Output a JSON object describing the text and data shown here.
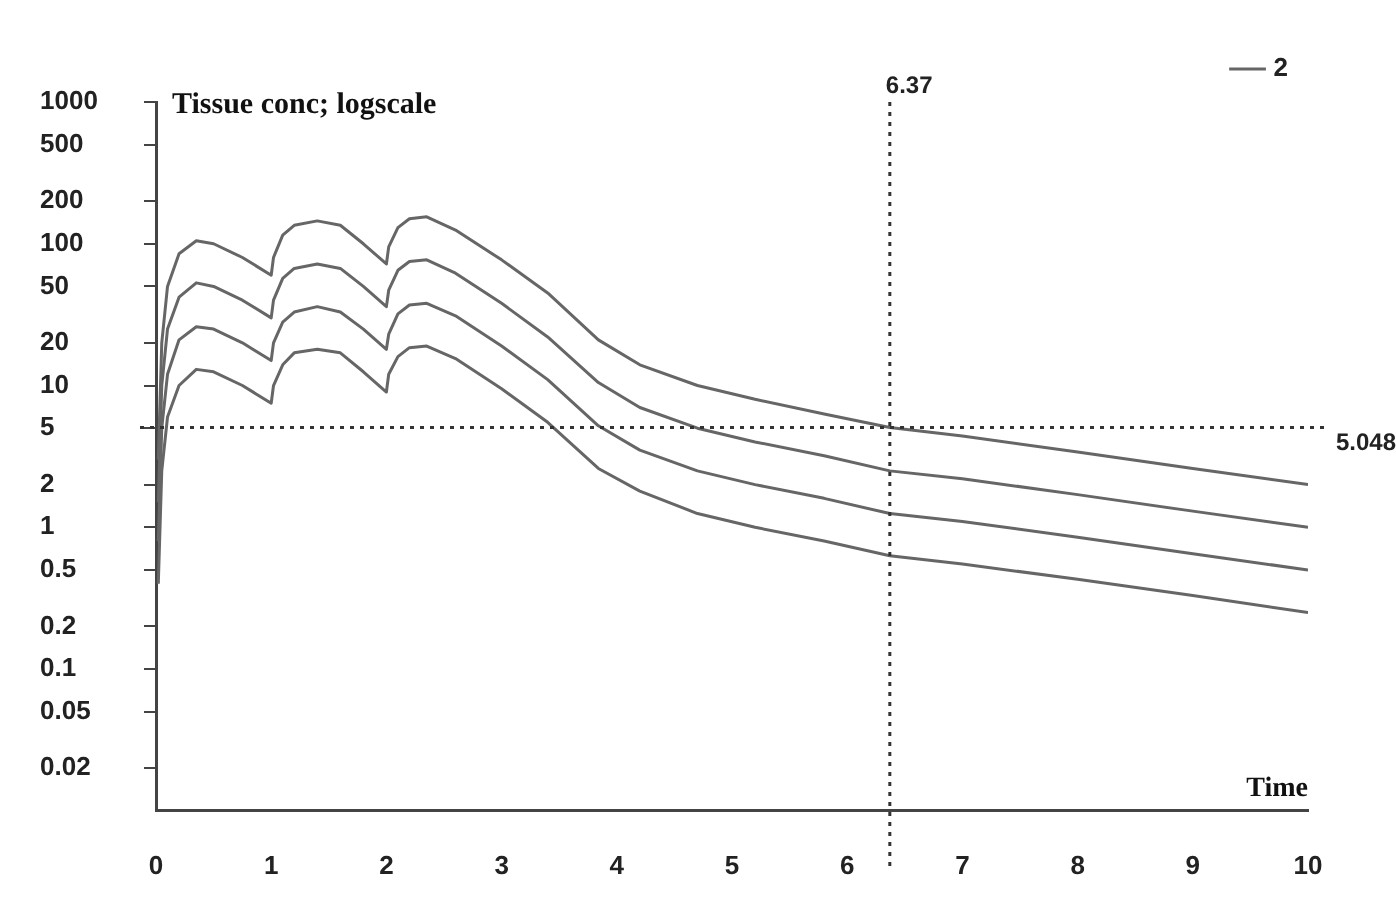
{
  "chart_data": {
    "type": "line",
    "title": "Tissue conc; logscale",
    "xlabel": "Time",
    "log": "y",
    "grid": false,
    "legend": "top right",
    "marker": "none",
    "line_style": "solid",
    "xlim": [
      0,
      10
    ],
    "xticks": [
      0,
      1,
      2,
      3,
      4,
      5,
      6,
      7,
      8,
      9,
      10
    ],
    "ylim": [
      0.01,
      1000
    ],
    "yticks": [
      1000,
      500,
      200,
      100,
      50,
      20,
      10,
      5,
      2,
      1,
      0.5,
      0.2,
      0.1,
      0.05,
      0.02
    ],
    "x": [
      0.02,
      0.05,
      0.1,
      0.2,
      0.35,
      0.5,
      0.75,
      1.0,
      1.02,
      1.1,
      1.2,
      1.4,
      1.6,
      1.8,
      2.0,
      2.02,
      2.1,
      2.2,
      2.35,
      2.6,
      3.0,
      3.4,
      3.84,
      4.2,
      4.7,
      5.2,
      5.8,
      6.37,
      7,
      8,
      9,
      10
    ],
    "series": [
      {
        "name": "2",
        "color": "#666666",
        "values": [
          3,
          20,
          50,
          85,
          105,
          100,
          80,
          60,
          80,
          115,
          135,
          145,
          135,
          100,
          72,
          95,
          130,
          150,
          155,
          125,
          77,
          45,
          21,
          14,
          10,
          8,
          6.3,
          5.05,
          4.4,
          3.4,
          2.6,
          2
        ]
      },
      {
        "color": "#666666",
        "values": [
          1.5,
          10,
          25,
          42,
          53,
          50,
          40,
          30,
          40,
          57,
          67,
          72,
          67,
          50,
          36,
          47,
          65,
          75,
          77,
          62,
          38,
          22,
          10.5,
          7,
          5,
          4,
          3.2,
          2.5,
          2.2,
          1.7,
          1.3,
          1
        ]
      },
      {
        "color": "#666666",
        "values": [
          0.8,
          5,
          12,
          21,
          26,
          25,
          20,
          15,
          20,
          28,
          33,
          36,
          33,
          25,
          18,
          23,
          32,
          37,
          38,
          31,
          19,
          11,
          5.2,
          3.5,
          2.5,
          2,
          1.6,
          1.25,
          1.1,
          0.85,
          0.65,
          0.5
        ]
      },
      {
        "color": "#666666",
        "values": [
          0.4,
          2.5,
          6,
          10,
          13,
          12.5,
          10,
          7.5,
          10,
          14,
          17,
          18,
          17,
          12.5,
          9,
          12,
          16,
          18.5,
          19,
          15.5,
          9.5,
          5.5,
          2.6,
          1.8,
          1.25,
          1,
          0.8,
          0.63,
          0.55,
          0.43,
          0.33,
          0.25
        ]
      }
    ],
    "ref_lines": [
      {
        "axis": "x",
        "value": 6.37,
        "label": "6.37",
        "line_style": "dotted",
        "color": "#333333"
      },
      {
        "axis": "y",
        "value": 5.048,
        "label": "5.048",
        "line_style": "dotted",
        "color": "#333333"
      }
    ]
  }
}
